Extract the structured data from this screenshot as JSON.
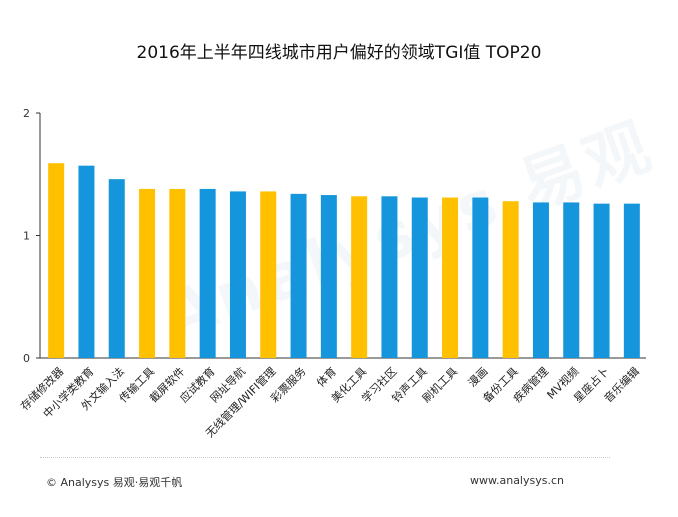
{
  "chart_data": {
    "type": "bar",
    "title": "2016年上半年四线城市用户偏好的领域TGI值 TOP20",
    "categories": [
      "存储修改器",
      "中小学类教育",
      "外文输入法",
      "传输工具",
      "截屏软件",
      "应试教育",
      "网址导航",
      "无线管理/WIFI管理",
      "彩票服务",
      "体育",
      "美化工具",
      "学习社区",
      "铃声工具",
      "刷机工具",
      "漫画",
      "备份工具",
      "疾病管理",
      "MV视频",
      "星座占卜",
      "音乐编辑"
    ],
    "values": [
      1.59,
      1.57,
      1.46,
      1.38,
      1.38,
      1.38,
      1.36,
      1.36,
      1.34,
      1.33,
      1.32,
      1.32,
      1.31,
      1.31,
      1.31,
      1.28,
      1.27,
      1.27,
      1.26,
      1.26
    ],
    "highlight": [
      true,
      false,
      false,
      true,
      true,
      false,
      false,
      true,
      false,
      false,
      true,
      false,
      false,
      true,
      false,
      true,
      false,
      false,
      false,
      false
    ],
    "yticks": [
      0,
      1,
      2
    ],
    "ylim": [
      0,
      2
    ],
    "colors": {
      "blue": "#1596dc",
      "orange": "#ffc000",
      "axis": "#333333"
    }
  },
  "footer": {
    "left": "© Analysys 易观·易观千帆",
    "right": "www.analysys.cn"
  },
  "watermark": "Analysys 易观"
}
